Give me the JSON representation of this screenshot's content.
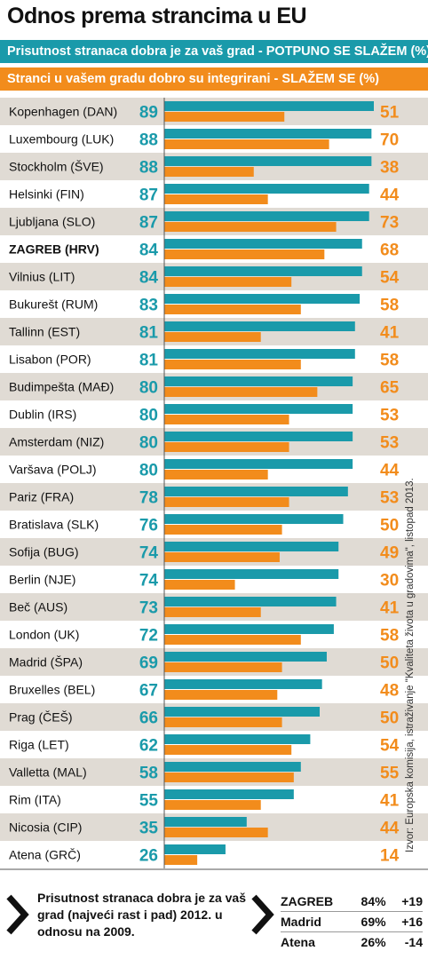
{
  "title": "Odnos prema strancima u EU",
  "legend": {
    "series1": "Prisutnost stranaca dobra je za vaš grad - POTPUNO SE SLAŽEM (%)",
    "series2": "Stranci u vašem gradu dobro su integrirani - SLAŽEM SE (%)"
  },
  "source": "Izvor: Europska komisija, istraživanje \"Kvaliteta života u gradovima\", listopad 2013.",
  "colors": {
    "teal": "#1a9aaa",
    "orange": "#f28c1c",
    "stripe": "#e0dbd4"
  },
  "chart_data": {
    "type": "bar",
    "orientation": "horizontal",
    "highlighted_category": "ZAGREB (HRV)",
    "categories": [
      "Kopenhagen (DAN)",
      "Luxembourg (LUK)",
      "Stockholm (ŠVE)",
      "Helsinki (FIN)",
      "Ljubljana (SLO)",
      "ZAGREB (HRV)",
      "Vilnius (LIT)",
      "Bukurešt (RUM)",
      "Tallinn (EST)",
      "Lisabon (POR)",
      "Budimpešta (MAĐ)",
      "Dublin (IRS)",
      "Amsterdam (NIZ)",
      "Varšava (POLJ)",
      "Pariz (FRA)",
      "Bratislava (SLK)",
      "Sofija (BUG)",
      "Berlin (NJE)",
      "Beč (AUS)",
      "London (UK)",
      "Madrid (ŠPA)",
      "Bruxelles (BEL)",
      "Prag (ČEŠ)",
      "Riga (LET)",
      "Valletta (MAL)",
      "Rim (ITA)",
      "Nicosia (CIP)",
      "Atena (GRČ)"
    ],
    "series": [
      {
        "name": "Prisutnost stranaca dobra je za vaš grad - POTPUNO SE SLAŽEM (%)",
        "color": "#1a9aaa",
        "values": [
          89,
          88,
          88,
          87,
          87,
          84,
          84,
          83,
          81,
          81,
          80,
          80,
          80,
          80,
          78,
          76,
          74,
          74,
          73,
          72,
          69,
          67,
          66,
          62,
          58,
          55,
          35,
          26
        ]
      },
      {
        "name": "Stranci u vašem gradu dobro su integrirani - SLAŽEM SE (%)",
        "color": "#f28c1c",
        "values": [
          51,
          70,
          38,
          44,
          73,
          68,
          54,
          58,
          41,
          58,
          65,
          53,
          53,
          44,
          53,
          50,
          49,
          30,
          41,
          58,
          50,
          48,
          50,
          54,
          55,
          41,
          44,
          14
        ]
      }
    ],
    "xlim": [
      0,
      89
    ]
  },
  "footer": {
    "text": "Prisutnost stranaca dobra je za vaš grad (najveći rast i pad) 2012. u odnosu na 2009.",
    "rows": [
      {
        "city": "ZAGREB",
        "value": "84%",
        "change": "+19"
      },
      {
        "city": "Madrid",
        "value": "69%",
        "change": "+16"
      },
      {
        "city": "Atena",
        "value": "26%",
        "change": "-14"
      }
    ]
  }
}
